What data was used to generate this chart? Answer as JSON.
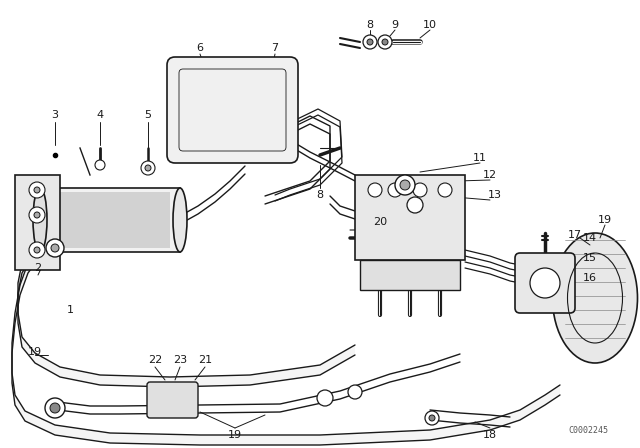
{
  "bg_color": "#ffffff",
  "line_color": "#1a1a1a",
  "watermark": "C0002245",
  "fig_width": 6.4,
  "fig_height": 4.48,
  "dpi": 100
}
